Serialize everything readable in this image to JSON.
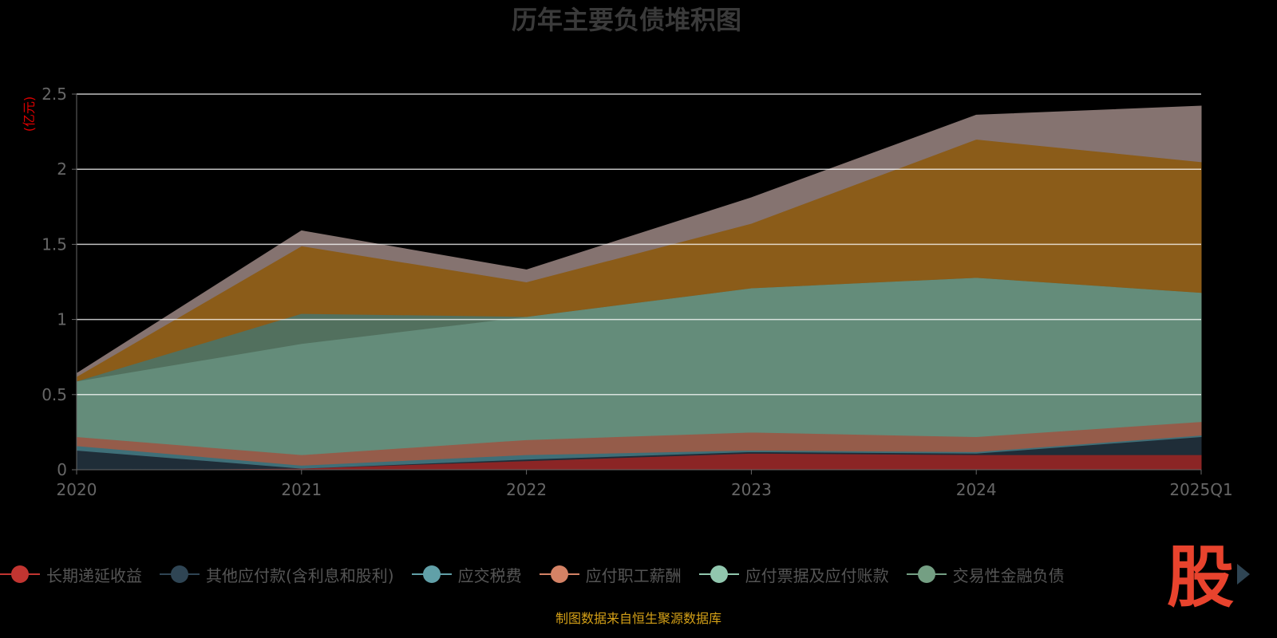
{
  "chart_data": {
    "type": "area",
    "stacked": true,
    "title": "历年主要负债堆积图",
    "ylabel": "(亿元)",
    "xlabel": "",
    "categories": [
      "2020",
      "2021",
      "2022",
      "2023",
      "2024",
      "2025Q1"
    ],
    "ylim": [
      0,
      2.5
    ],
    "yticks": [
      0,
      0.5,
      1,
      1.5,
      2,
      2.5
    ],
    "ytick_labels": [
      "0",
      "0.5",
      "1",
      "1.5",
      "2",
      "2.5"
    ],
    "grid": true,
    "legend_position": "bottom",
    "series": [
      {
        "name": "长期递延收益",
        "color": "#c23531",
        "fill": "#8b2525",
        "values": [
          0,
          0.01,
          0.06,
          0.11,
          0.1,
          0.1
        ]
      },
      {
        "name": "其他应付款(含利息和股利)",
        "color": "#2f4554",
        "fill": "#1f2d38",
        "values": [
          0.13,
          0,
          0.01,
          0.01,
          0.01,
          0.12
        ]
      },
      {
        "name": "应交税费",
        "color": "#61a0a8",
        "fill": "#3f6f78",
        "values": [
          0.03,
          0.02,
          0.03,
          0.01,
          0.01,
          0.01
        ]
      },
      {
        "name": "应付职工薪酬",
        "color": "#d48265",
        "fill": "#955c4a",
        "values": [
          0.06,
          0.07,
          0.1,
          0.12,
          0.1,
          0.09
        ]
      },
      {
        "name": "应付票据及应付账款",
        "color": "#91c7ae",
        "fill": "#648c7a",
        "values": [
          0.37,
          0.74,
          0.82,
          0.96,
          1.06,
          0.86
        ]
      },
      {
        "name": "交易性金融负债",
        "color": "#749f83",
        "fill": "#52705e",
        "values": [
          0,
          0.2,
          0,
          0,
          0,
          0
        ]
      },
      {
        "name": "",
        "color": "#ca8622",
        "fill": "#8b5c19",
        "values": [
          0.03,
          0.45,
          0.23,
          0.43,
          0.92,
          0.87
        ]
      },
      {
        "name": "",
        "color": "#bda29a",
        "fill": "#857370",
        "values": [
          0.02,
          0.1,
          0.08,
          0.17,
          0.16,
          0.37
        ]
      }
    ]
  },
  "legend": {
    "items": [
      "长期递延收益",
      "其他应付款(含利息和股利)",
      "应交税费",
      "应付职工薪酬",
      "应付票据及应付账款",
      "交易性金融负债"
    ]
  },
  "source": "制图数据来自恒生聚源数据库",
  "logo_text": "股"
}
